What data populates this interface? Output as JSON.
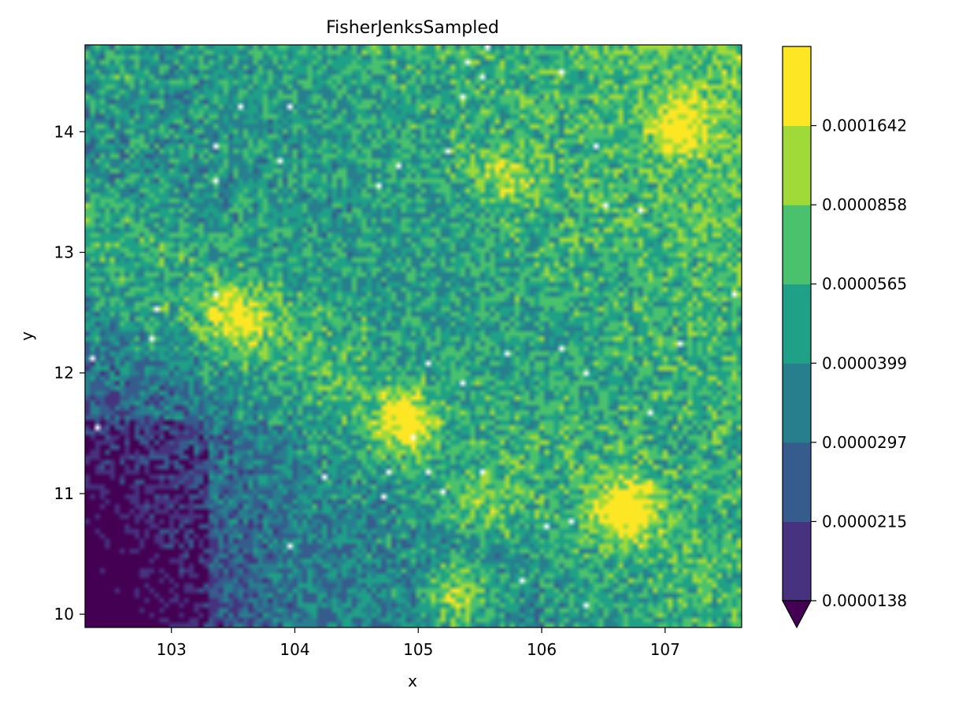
{
  "chart_data": {
    "type": "heatmap",
    "title": "FisherJenksSampled",
    "xlabel": "x",
    "ylabel": "y",
    "xlim": [
      102.3,
      107.62
    ],
    "ylim": [
      9.89,
      14.72
    ],
    "x_ticks": [
      103,
      104,
      105,
      106,
      107
    ],
    "y_ticks": [
      10,
      11,
      12,
      13,
      14
    ],
    "x_tick_labels": [
      "103",
      "104",
      "105",
      "106",
      "107"
    ],
    "y_tick_labels": [
      "10",
      "11",
      "12",
      "13",
      "14"
    ],
    "grid": false,
    "colorbar": {
      "boundaries": [
        "0.0000138",
        "0.0000215",
        "0.0000297",
        "0.0000399",
        "0.0000565",
        "0.0000858",
        "0.0001642"
      ],
      "colors": [
        "#46327e",
        "#365c8d",
        "#277f8e",
        "#1fa187",
        "#4ac16d",
        "#a0da39",
        "#fde725"
      ],
      "under_color": "#440154",
      "extend": "min",
      "placement": "right"
    },
    "hotspots": [
      {
        "x": 106.68,
        "y": 10.87,
        "level": 6
      },
      {
        "x": 104.88,
        "y": 11.6,
        "level": 6
      },
      {
        "x": 105.3,
        "y": 10.15,
        "level": 5
      },
      {
        "x": 103.55,
        "y": 12.45,
        "level": 5
      },
      {
        "x": 105.72,
        "y": 13.65,
        "level": 4
      },
      {
        "x": 107.12,
        "y": 14.05,
        "level": 5
      },
      {
        "x": 105.5,
        "y": 10.9,
        "level": 4
      },
      {
        "x": 102.6,
        "y": 14.45,
        "level": 3
      }
    ]
  }
}
